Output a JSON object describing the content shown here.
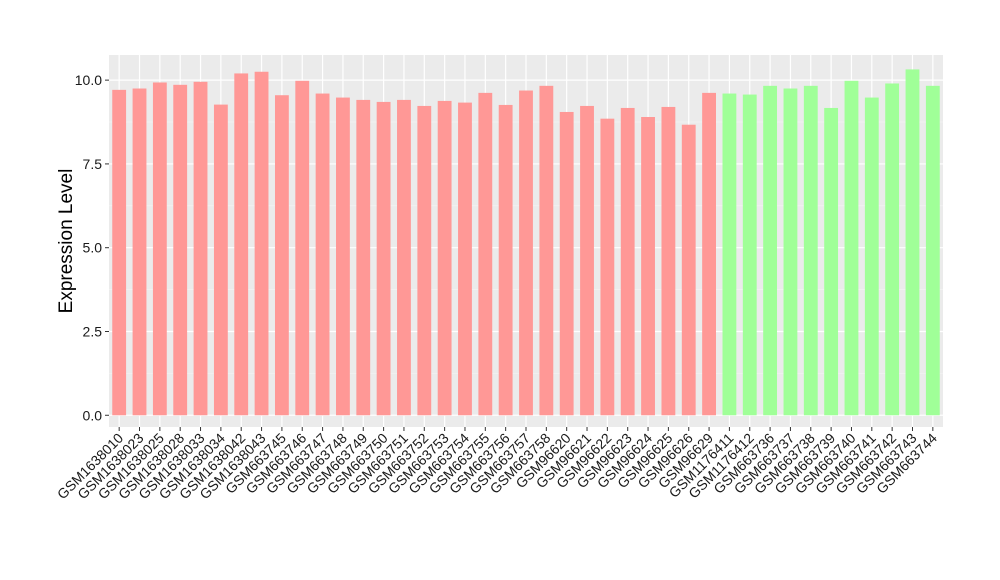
{
  "chart_data": {
    "type": "bar",
    "ylabel": "Expression Level",
    "xlabel": "",
    "ylim": [
      -0.35,
      10.75
    ],
    "yticks": [
      0.0,
      2.5,
      5.0,
      7.5,
      10.0
    ],
    "ytick_labels": [
      "0.0",
      "2.5",
      "5.0",
      "7.5",
      "10.0"
    ],
    "grid": true,
    "legend": "none",
    "groups": [
      {
        "color": "#FF9896"
      },
      {
        "color": "#A0FF98"
      }
    ],
    "categories": [
      "GSM1638010",
      "GSM1638023",
      "GSM1638025",
      "GSM1638028",
      "GSM1638033",
      "GSM1638034",
      "GSM1638042",
      "GSM1638043",
      "GSM663745",
      "GSM663746",
      "GSM663747",
      "GSM663748",
      "GSM663749",
      "GSM663750",
      "GSM663751",
      "GSM663752",
      "GSM663753",
      "GSM663754",
      "GSM663755",
      "GSM663756",
      "GSM663757",
      "GSM663758",
      "GSM96620",
      "GSM96621",
      "GSM96622",
      "GSM96623",
      "GSM96624",
      "GSM96625",
      "GSM96626",
      "GSM96629",
      "GSM1176411",
      "GSM1176412",
      "GSM663736",
      "GSM663737",
      "GSM663738",
      "GSM663739",
      "GSM663740",
      "GSM663741",
      "GSM663742",
      "GSM663743",
      "GSM663744"
    ],
    "values": [
      9.71,
      9.75,
      9.93,
      9.86,
      9.95,
      9.27,
      10.2,
      10.25,
      9.55,
      9.98,
      9.6,
      9.48,
      9.41,
      9.35,
      9.41,
      9.23,
      9.38,
      9.33,
      9.62,
      9.26,
      9.69,
      9.83,
      9.05,
      9.23,
      8.85,
      9.17,
      8.9,
      9.2,
      8.67,
      9.62,
      9.6,
      9.57,
      9.83,
      9.75,
      9.83,
      9.17,
      9.98,
      9.48,
      9.9,
      10.32,
      9.83
    ],
    "group_index": [
      0,
      0,
      0,
      0,
      0,
      0,
      0,
      0,
      0,
      0,
      0,
      0,
      0,
      0,
      0,
      0,
      0,
      0,
      0,
      0,
      0,
      0,
      0,
      0,
      0,
      0,
      0,
      0,
      0,
      0,
      1,
      1,
      1,
      1,
      1,
      1,
      1,
      1,
      1,
      1,
      1
    ]
  }
}
